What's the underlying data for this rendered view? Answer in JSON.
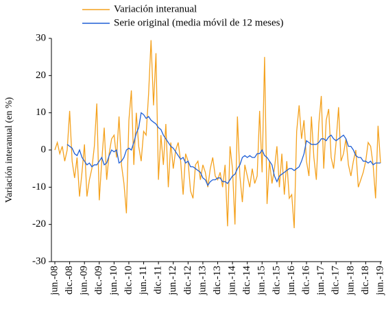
{
  "chart_data": {
    "type": "line",
    "y_label": "Variación interanual (en %)",
    "ylim": [
      -30,
      30
    ],
    "yticks": [
      -30,
      -20,
      -10,
      0,
      10,
      20,
      30
    ],
    "categories": [
      "jun.-08",
      null,
      null,
      null,
      null,
      null,
      "dic.-08",
      null,
      null,
      null,
      null,
      null,
      "jun.-09",
      null,
      null,
      null,
      null,
      null,
      "dic.-09",
      null,
      null,
      null,
      null,
      null,
      "jun.-10",
      null,
      null,
      null,
      null,
      null,
      "dic.-10",
      null,
      null,
      null,
      null,
      null,
      "jun.-11",
      null,
      null,
      null,
      null,
      null,
      "dic.-11",
      null,
      null,
      null,
      null,
      null,
      "jun.-12",
      null,
      null,
      null,
      null,
      null,
      "dic.-12",
      null,
      null,
      null,
      null,
      null,
      "jun.-13",
      null,
      null,
      null,
      null,
      null,
      "dic.-13",
      null,
      null,
      null,
      null,
      null,
      "jun.-14",
      null,
      null,
      null,
      null,
      null,
      "dic.-14",
      null,
      null,
      null,
      null,
      null,
      "jun.-15",
      null,
      null,
      null,
      null,
      null,
      "dic.-15",
      null,
      null,
      null,
      null,
      null,
      "jun.-16",
      null,
      null,
      null,
      null,
      null,
      "dic.-16",
      null,
      null,
      null,
      null,
      null,
      "jun.-17",
      null,
      null,
      null,
      null,
      null,
      "dic.-17",
      null,
      null,
      null,
      null,
      null,
      "jun.-18",
      null,
      null,
      null,
      null,
      null,
      "dic.-18",
      null,
      null,
      null,
      null,
      null,
      "jun.-19"
    ],
    "series": [
      {
        "name": "Variación interanual",
        "color": "#f4a11d",
        "values": [
          0,
          2,
          -1,
          1,
          -3,
          0,
          10.5,
          -3,
          -7.5,
          -2,
          -12.5,
          -6,
          1.5,
          -12.5,
          -8,
          -5,
          1,
          12.5,
          -13.5,
          -3,
          6,
          -8,
          -1,
          3,
          4,
          -2,
          9,
          -4,
          -9,
          -17,
          8,
          16,
          -4,
          10,
          1,
          -3,
          5,
          4,
          15,
          29.5,
          12,
          26,
          -8,
          4,
          -4,
          7,
          -10,
          2,
          -5,
          0,
          2,
          -3,
          -12,
          -1,
          -3,
          -11,
          -13,
          -4,
          -3,
          -8,
          -4,
          -6,
          -10,
          -5,
          -2,
          -7,
          -8,
          -6,
          -10,
          -4,
          -20.5,
          1,
          -5,
          -20,
          9,
          -7,
          -14,
          -4,
          -7,
          -10,
          -5,
          -9,
          -7,
          10.5,
          -6,
          25,
          -14.5,
          -3,
          -9,
          -5,
          1,
          -10,
          -1,
          -12,
          -3,
          -13,
          -12,
          -21,
          5,
          12,
          3,
          8,
          -3,
          -7,
          9,
          -2,
          -8,
          7,
          14.5,
          -5,
          8,
          11,
          -2,
          -5,
          2,
          11.5,
          -3,
          -1,
          3,
          -4,
          -7,
          -3,
          0,
          -10,
          -8,
          -6,
          -3,
          2,
          1,
          -4,
          -13,
          6.5,
          -3.5
        ]
      },
      {
        "name": "Serie original (media móvil de 12 meses)",
        "color": "#1f5fd6",
        "values": [
          null,
          null,
          null,
          null,
          null,
          1.5,
          1,
          0.5,
          -1,
          -1.5,
          0,
          -2,
          -3,
          -4,
          -3.5,
          -4.5,
          -4,
          -4,
          -3,
          -2,
          -4,
          -3.5,
          -1.5,
          0,
          -0.5,
          0,
          -3.5,
          -3,
          -2,
          0,
          0.5,
          0,
          2,
          4.5,
          6,
          10,
          9.5,
          8.5,
          9,
          8,
          7.5,
          7,
          6,
          5.5,
          4,
          3,
          2,
          1,
          0.5,
          -0.5,
          -1.5,
          -2.5,
          -2,
          -3.5,
          -3,
          -4.5,
          -4.5,
          -5,
          -5.5,
          -6,
          -7.5,
          -8,
          -9.5,
          -8.5,
          -8,
          -8,
          -7.5,
          -7.5,
          -8.5,
          -8.5,
          -9,
          -8,
          -7,
          -6.5,
          -5,
          -4,
          -2,
          -1.5,
          -2,
          -1.5,
          -2,
          -2,
          -1,
          -1,
          0,
          -1.5,
          -2,
          -3,
          -4,
          -7,
          -8.5,
          -7,
          -6.5,
          -6,
          -5.5,
          -5,
          -5,
          -5.5,
          -5,
          -4.5,
          -3,
          -1,
          2.5,
          2,
          1.5,
          1.5,
          1.5,
          2,
          3,
          3,
          2.5,
          3.5,
          4,
          3,
          2.5,
          3,
          3.5,
          4,
          3,
          1,
          1,
          0,
          -1.5,
          -2,
          -2,
          -3,
          -3,
          -3.5,
          -3,
          -4,
          -3.5,
          -3.5,
          -3.5
        ]
      }
    ]
  }
}
